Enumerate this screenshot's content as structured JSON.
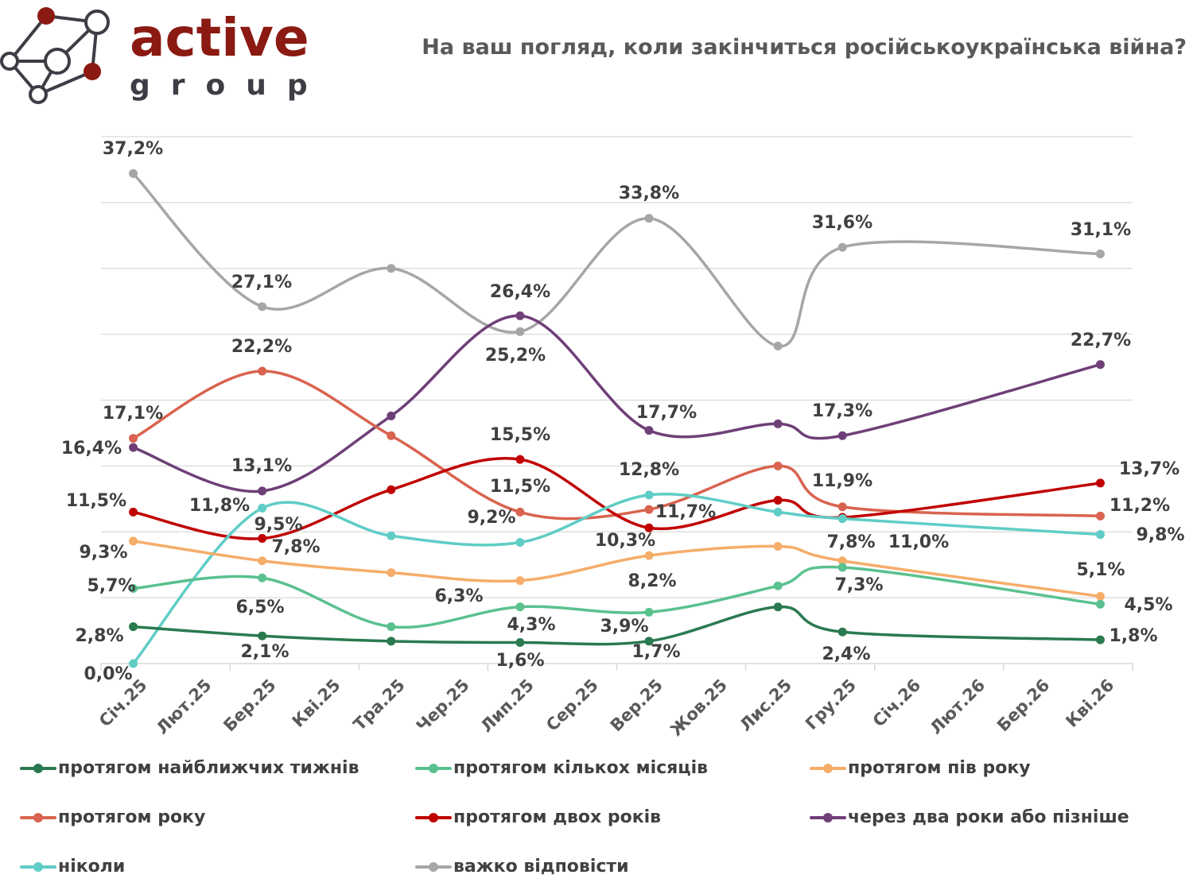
{
  "logo": {
    "word1": "active",
    "word2": "group",
    "color": "#8b1a12"
  },
  "chart_data": {
    "type": "line",
    "title": "На ваш погляд, коли закінчиться російськоукраїнська війна?",
    "categories": [
      "Січ.25",
      "Лют.25",
      "Бер.25",
      "Кві.25",
      "Тра.25",
      "Чер.25",
      "Лип.25",
      "Сер.25",
      "Вер.25",
      "Жов.25",
      "Лис.25",
      "Гру.25",
      "Січ.26",
      "Лют.26",
      "Бер.26",
      "Кві.26"
    ],
    "x": [
      "Січ.25",
      "Бер.25",
      "Тра.25",
      "Лип.25",
      "Вер.25",
      "Лис.25",
      "Гру.25",
      "Кві.26"
    ],
    "ylim": [
      0,
      40
    ],
    "grid": true,
    "legend_position": "bottom",
    "series": [
      {
        "name": "протягом найближчих тижнів",
        "color": "#2a7a4f",
        "values": [
          2.8,
          2.1,
          1.7,
          1.6,
          1.7,
          4.3,
          2.4,
          1.8
        ],
        "labels": [
          "2,8%",
          "2,1%",
          null,
          "1,6%",
          "1,7%",
          null,
          "2,4%",
          "1,8%"
        ]
      },
      {
        "name": "протягом кількох місяців",
        "color": "#5ac18e",
        "values": [
          5.7,
          6.5,
          2.8,
          4.3,
          3.9,
          5.9,
          7.3,
          4.5
        ],
        "labels": [
          "5,7%",
          "6,5%",
          null,
          "4,3%",
          "3,9%",
          null,
          "7,3%",
          "4,5%"
        ]
      },
      {
        "name": "протягом пів року",
        "color": "#f5ad6a",
        "values": [
          9.3,
          7.8,
          6.9,
          6.3,
          8.2,
          8.9,
          7.8,
          5.1
        ],
        "labels": [
          "9,3%",
          "7,8%",
          null,
          "6,3%",
          "8,2%",
          null,
          "7,8%",
          "5,1%"
        ]
      },
      {
        "name": "протягом року",
        "color": "#d9634f",
        "values": [
          17.1,
          22.2,
          17.3,
          11.5,
          11.7,
          15.0,
          11.9,
          11.2
        ],
        "labels": [
          "17,1%",
          "22,2%",
          null,
          "11,5%",
          "11,7%",
          null,
          "11,9%",
          "11,2%"
        ]
      },
      {
        "name": "протягом двох років",
        "color": "#c00000",
        "values": [
          11.5,
          9.5,
          13.2,
          15.5,
          10.3,
          12.4,
          11.1,
          13.7
        ],
        "labels": [
          "11,5%",
          "9,5%",
          null,
          "15,5%",
          "10,3%",
          null,
          null,
          "13,7%"
        ]
      },
      {
        "name": "через два роки або пізніше",
        "color": "#6f3f78",
        "values": [
          16.4,
          13.1,
          18.8,
          26.4,
          17.7,
          18.2,
          17.3,
          22.7
        ],
        "labels": [
          "16,4%",
          "13,1%",
          null,
          "26,4%",
          "17,7%",
          null,
          "17,3%",
          "22,7%"
        ]
      },
      {
        "name": "ніколи",
        "color": "#5fcdc6",
        "values": [
          0.0,
          11.8,
          9.7,
          9.2,
          12.8,
          11.5,
          11.0,
          9.8
        ],
        "labels": [
          "0,0%",
          "11,8%",
          null,
          "9,2%",
          "12,8%",
          null,
          "11,0%",
          "9,8%"
        ]
      },
      {
        "name": "важко відповісти",
        "color": "#a6a6a6",
        "values": [
          37.2,
          27.1,
          30.0,
          25.2,
          33.8,
          24.1,
          31.6,
          31.1
        ],
        "labels": [
          "37,2%",
          "27,1%",
          null,
          "25,2%",
          "33,8%",
          null,
          "31,6%",
          "31,1%"
        ]
      }
    ]
  }
}
